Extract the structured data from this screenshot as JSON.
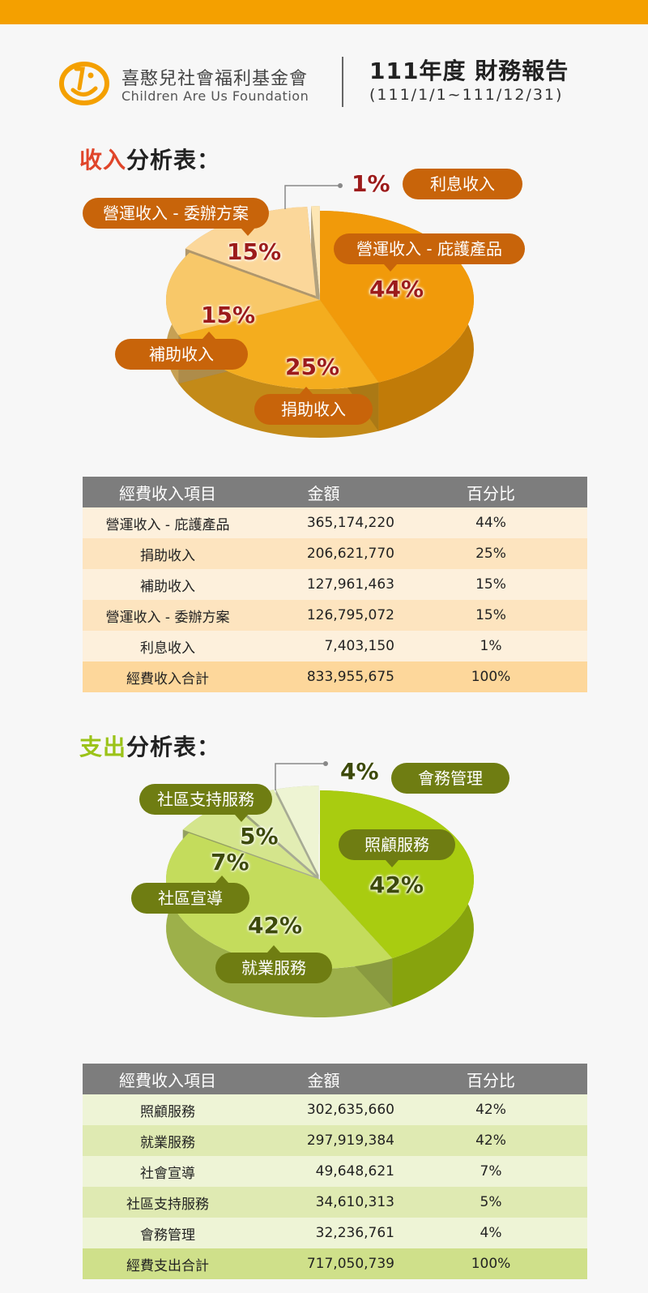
{
  "header": {
    "org_name_cn": "喜憨兒社會福利基金會",
    "org_name_en": "Children Are Us Foundation",
    "report_title": "111年度 財務報告",
    "report_period": "(111/1/1~111/12/31)"
  },
  "income": {
    "title_accent": "收入",
    "title_rest": "分析表：",
    "labels": {
      "shelter": "營運收入 - 庇護產品",
      "donation": "捐助收入",
      "subsidy": "補助收入",
      "commission": "營運收入 - 委辦方案",
      "interest": "利息收入"
    },
    "percents": {
      "shelter": "44%",
      "donation": "25%",
      "subsidy": "15%",
      "commission": "15%",
      "interest": "1%"
    },
    "table": {
      "headers": [
        "經費收入項目",
        "金額",
        "百分比"
      ],
      "rows": [
        [
          "營運收入 - 庇護產品",
          "365,174,220",
          "44%"
        ],
        [
          "捐助收入",
          "206,621,770",
          "25%"
        ],
        [
          "補助收入",
          "127,961,463",
          "15%"
        ],
        [
          "營運收入 - 委辦方案",
          "126,795,072",
          "15%"
        ],
        [
          "利息收入",
          "7,403,150",
          "1%"
        ]
      ],
      "total": [
        "經費收入合計",
        "833,955,675",
        "100%"
      ]
    }
  },
  "expense": {
    "title_accent": "支出",
    "title_rest": "分析表：",
    "labels": {
      "care": "照顧服務",
      "employment": "就業服務",
      "advocacy": "社區宣導",
      "community": "社區支持服務",
      "admin": "會務管理"
    },
    "percents": {
      "care": "42%",
      "employment": "42%",
      "advocacy": "7%",
      "community": "5%",
      "admin": "4%"
    },
    "table": {
      "headers": [
        "經費收入項目",
        "金額",
        "百分比"
      ],
      "rows": [
        [
          "照顧服務",
          "302,635,660",
          "42%"
        ],
        [
          "就業服務",
          "297,919,384",
          "42%"
        ],
        [
          "社會宣導",
          "49,648,621",
          "7%"
        ],
        [
          "社區支持服務",
          "34,610,313",
          "5%"
        ],
        [
          "會務管理",
          "32,236,761",
          "4%"
        ]
      ],
      "total": [
        "經費支出合計",
        "717,050,739",
        "100%"
      ]
    }
  },
  "chart_data": [
    {
      "type": "pie",
      "categories": [
        "營運收入 - 庇護產品",
        "捐助收入",
        "補助收入",
        "營運收入 - 委辦方案",
        "利息收入"
      ],
      "values": [
        365174220,
        206621770,
        127961463,
        126795072,
        7403150
      ],
      "percent_labels": [
        44,
        25,
        15,
        15,
        1
      ],
      "title": "收入分析表：",
      "colors": [
        "#f19a0a",
        "#f4ad1e",
        "#f8c869",
        "#fbd79a",
        "#fde6b4"
      ]
    },
    {
      "type": "pie",
      "categories": [
        "照顧服務",
        "就業服務",
        "社區宣導",
        "社區支持服務",
        "會務管理"
      ],
      "values": [
        302635660,
        297919384,
        49648621,
        34610313,
        32236761
      ],
      "percent_labels": [
        42,
        42,
        7,
        5,
        4
      ],
      "title": "支出分析表：",
      "colors": [
        "#a9cc10",
        "#c4dc5c",
        "#d4e58c",
        "#e2edb3",
        "#eef4d3"
      ]
    }
  ]
}
